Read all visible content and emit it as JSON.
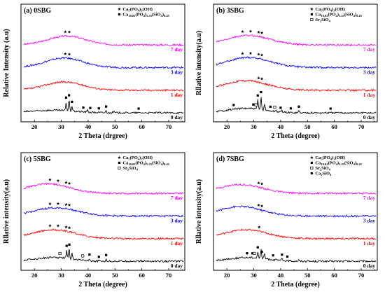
{
  "chart_data": [
    {
      "type": "line",
      "title": "(a) 0SBG",
      "ylabel": "Relative Intensity (a.u)",
      "xlabel": "2 Theta (drgree)",
      "xlim": [
        15,
        76
      ],
      "xticks": [
        20,
        30,
        40,
        50,
        60,
        70
      ],
      "legend": [
        {
          "marker": "star",
          "label": "Ca",
          "sub": "5",
          "rest": "(PO",
          "sub2": "4",
          "rest2": ")",
          "sub3": "3",
          "rest3": "(OH)"
        },
        {
          "marker": "square",
          "label": "Ca",
          "sub": "10.02",
          "rest": "(PO",
          "sub2": "4",
          "rest2": ")",
          "sub3": "5.55",
          "rest3": "(SiO",
          "sub4": "4",
          "rest4": ")",
          "sub5": "0.45"
        }
      ],
      "series": [
        {
          "name": "7 day",
          "color": "#ff00ff",
          "offset": 4,
          "amorphous": [
            32,
            1.4,
            7
          ]
        },
        {
          "name": "3 day",
          "color": "#0000ff",
          "offset": 3,
          "amorphous": [
            31,
            1.5,
            7
          ]
        },
        {
          "name": "1 day",
          "color": "#ff0000",
          "offset": 2,
          "amorphous": [
            31,
            1.3,
            7
          ]
        },
        {
          "name": "0 day",
          "color": "#000000",
          "offset": 1,
          "amorphous": [
            27,
            0.4,
            8
          ],
          "peaks": [
            [
              31.8,
              1.4
            ],
            [
              32.9,
              1.8
            ],
            [
              34.0,
              0.8
            ],
            [
              39.8,
              0.3
            ],
            [
              46.7,
              0.3
            ],
            [
              49.5,
              0.25
            ]
          ]
        }
      ],
      "markers": [
        {
          "type": "star",
          "x": 31.5,
          "series": 0
        },
        {
          "type": "star",
          "x": 33.0,
          "series": 0
        },
        {
          "type": "star",
          "x": 31.5,
          "series": 1
        },
        {
          "type": "star",
          "x": 33.0,
          "series": 1
        },
        {
          "type": "square",
          "x": 31.8,
          "series": 3
        },
        {
          "type": "square",
          "x": 32.9,
          "series": 3
        },
        {
          "type": "square",
          "x": 34.0,
          "series": 3
        },
        {
          "type": "square",
          "x": 38.2,
          "series": 3
        },
        {
          "type": "square",
          "x": 40.8,
          "series": 3
        },
        {
          "type": "square",
          "x": 44.0,
          "series": 3
        },
        {
          "type": "square",
          "x": 46.7,
          "series": 3
        },
        {
          "type": "square",
          "x": 58.8,
          "series": 3
        }
      ]
    },
    {
      "type": "line",
      "title": "(b) 3SBG",
      "ylabel": "Rllative intensity(a.u)",
      "xlabel": "2 Theta (degree)",
      "xlim": [
        15,
        76
      ],
      "xticks": [
        20,
        30,
        40,
        50,
        60,
        70
      ],
      "legend": [
        {
          "marker": "star",
          "label": "Ca",
          "sub": "5",
          "rest": "(PO",
          "sub2": "4",
          "rest2": ")",
          "sub3": "3",
          "rest3": "(OH)"
        },
        {
          "marker": "square",
          "label": "Ca",
          "sub": "10.02",
          "rest": "(PO",
          "sub2": "4",
          "rest2": ")",
          "sub3": "5.55",
          "rest3": "(SiO",
          "sub4": "4",
          "rest4": ")",
          "sub5": "0.45"
        },
        {
          "marker": "open-square",
          "label": "Sr",
          "sub": "2",
          "rest": "SiO",
          "sub2": "4"
        }
      ],
      "series": [
        {
          "name": "7 day",
          "color": "#ff00ff",
          "offset": 4,
          "amorphous": [
            28,
            1.5,
            8
          ]
        },
        {
          "name": "3 day",
          "color": "#0000ff",
          "offset": 3,
          "amorphous": [
            28,
            1.6,
            8
          ]
        },
        {
          "name": "1 day",
          "color": "#ff0000",
          "offset": 2,
          "amorphous": [
            27,
            1.5,
            8
          ]
        },
        {
          "name": "0 day",
          "color": "#000000",
          "offset": 1,
          "amorphous": [
            27,
            0.7,
            7
          ],
          "peaks": [
            [
              31.5,
              1.5
            ],
            [
              32.7,
              2.1
            ],
            [
              34.0,
              1.0
            ],
            [
              38.3,
              0.25
            ],
            [
              40.5,
              0.3
            ],
            [
              46.8,
              0.3
            ]
          ]
        }
      ],
      "markers": [
        {
          "type": "star",
          "x": 25.8,
          "series": 0
        },
        {
          "type": "star",
          "x": 28.8,
          "series": 0
        },
        {
          "type": "star",
          "x": 31.8,
          "series": 0
        },
        {
          "type": "star",
          "x": 33.0,
          "series": 0
        },
        {
          "type": "star",
          "x": 25.8,
          "series": 1
        },
        {
          "type": "star",
          "x": 28.8,
          "series": 1
        },
        {
          "type": "star",
          "x": 31.8,
          "series": 1
        },
        {
          "type": "star",
          "x": 33.0,
          "series": 1
        },
        {
          "type": "star",
          "x": 31.8,
          "series": 2
        },
        {
          "type": "star",
          "x": 33.0,
          "series": 2
        },
        {
          "type": "square",
          "x": 22.5,
          "series": 3
        },
        {
          "type": "square",
          "x": 29.8,
          "series": 3
        },
        {
          "type": "open-square",
          "x": 30.8,
          "series": 3
        },
        {
          "type": "square",
          "x": 31.5,
          "series": 3
        },
        {
          "type": "square",
          "x": 32.7,
          "series": 3
        },
        {
          "type": "open-square",
          "x": 37.8,
          "series": 3
        },
        {
          "type": "square",
          "x": 36.2,
          "series": 3
        },
        {
          "type": "square",
          "x": 40.0,
          "series": 3
        },
        {
          "type": "square",
          "x": 43.8,
          "series": 3
        },
        {
          "type": "square",
          "x": 46.8,
          "series": 3
        },
        {
          "type": "square",
          "x": 58.6,
          "series": 3
        }
      ]
    },
    {
      "type": "line",
      "title": "(c) 5SBG",
      "ylabel": "Rllative intensity(a.u)",
      "xlabel": "2 Theta (degree)",
      "xlim": [
        15,
        76
      ],
      "xticks": [
        20,
        30,
        40,
        50,
        60,
        70
      ],
      "legend": [
        {
          "marker": "star",
          "label": "Ca",
          "sub": "5",
          "rest": "(PO",
          "sub2": "4",
          "rest2": ")",
          "sub3": "3",
          "rest3": "(OH)"
        },
        {
          "marker": "square",
          "label": "Ca",
          "sub": "10.02",
          "rest": "(PO",
          "sub2": "4",
          "rest2": ")",
          "sub3": "5.55",
          "rest3": "(SiO",
          "sub4": "4",
          "rest4": ")",
          "sub5": "0.45"
        },
        {
          "marker": "open-square",
          "label": "Sr",
          "sub": "2",
          "rest": "SiO",
          "sub2": "4"
        }
      ],
      "series": [
        {
          "name": "7 day",
          "color": "#ff00ff",
          "offset": 4,
          "amorphous": [
            25,
            1.5,
            8
          ]
        },
        {
          "name": "3 day",
          "color": "#0000ff",
          "offset": 3,
          "amorphous": [
            28,
            1.3,
            8
          ]
        },
        {
          "name": "1 day",
          "color": "#ff0000",
          "offset": 2,
          "amorphous": [
            27,
            1.4,
            8
          ]
        },
        {
          "name": "0 day",
          "color": "#000000",
          "offset": 1,
          "amorphous": [
            27,
            0.6,
            7
          ],
          "peaks": [
            [
              32.0,
              1.3
            ],
            [
              32.9,
              1.8
            ],
            [
              34.0,
              0.9
            ],
            [
              40.5,
              0.3
            ],
            [
              46.7,
              0.3
            ]
          ]
        }
      ],
      "markers": [
        {
          "type": "star",
          "x": 25.8,
          "series": 0
        },
        {
          "type": "star",
          "x": 28.8,
          "series": 0
        },
        {
          "type": "star",
          "x": 31.8,
          "series": 0
        },
        {
          "type": "star",
          "x": 33.0,
          "series": 0
        },
        {
          "type": "star",
          "x": 25.8,
          "series": 1
        },
        {
          "type": "star",
          "x": 28.8,
          "series": 1
        },
        {
          "type": "star",
          "x": 31.8,
          "series": 1
        },
        {
          "type": "star",
          "x": 33.0,
          "series": 1
        },
        {
          "type": "star",
          "x": 25.8,
          "series": 2
        },
        {
          "type": "star",
          "x": 28.8,
          "series": 2
        },
        {
          "type": "star",
          "x": 31.8,
          "series": 2
        },
        {
          "type": "star",
          "x": 33.0,
          "series": 2
        },
        {
          "type": "open-square",
          "x": 29.5,
          "series": 3
        },
        {
          "type": "square",
          "x": 32.0,
          "series": 3
        },
        {
          "type": "square",
          "x": 33.0,
          "series": 3
        },
        {
          "type": "open-square",
          "x": 38.0,
          "series": 3
        },
        {
          "type": "square",
          "x": 40.5,
          "series": 3
        },
        {
          "type": "square",
          "x": 44.0,
          "series": 3
        },
        {
          "type": "square",
          "x": 46.7,
          "series": 3
        }
      ]
    },
    {
      "type": "line",
      "title": "(d) 7SBG",
      "ylabel": "Rllative intensity(a.u)",
      "xlabel": "2 Theta (degree)",
      "xlim": [
        15,
        76
      ],
      "xticks": [
        20,
        30,
        40,
        50,
        60,
        70
      ],
      "legend": [
        {
          "marker": "star",
          "label": "Ca",
          "sub": "5",
          "rest": "(PO",
          "sub2": "4",
          "rest2": ")",
          "sub3": "3",
          "rest3": "(OH)"
        },
        {
          "marker": "square",
          "label": "Ca",
          "sub": "10.02",
          "rest": "(PO",
          "sub2": "4",
          "rest2": ")",
          "sub3": "5.55",
          "rest3": "(SiO",
          "sub4": "4",
          "rest4": ")",
          "sub5": "0.45"
        },
        {
          "marker": "open-square",
          "label": "Sr",
          "sub": "2",
          "rest": "SiO",
          "sub2": "4"
        },
        {
          "marker": "dot",
          "label": "Ca",
          "sub": "2",
          "rest": "SiO",
          "sub2": "4"
        }
      ],
      "series": [
        {
          "name": "7 day",
          "color": "#ff00ff",
          "offset": 4,
          "amorphous": [
            25,
            1.4,
            8
          ]
        },
        {
          "name": "3 day",
          "color": "#0000ff",
          "offset": 3,
          "amorphous": [
            25,
            1.5,
            8
          ]
        },
        {
          "name": "1 day",
          "color": "#ff0000",
          "offset": 2,
          "amorphous": [
            27,
            1.4,
            8
          ]
        },
        {
          "name": "0 day",
          "color": "#000000",
          "offset": 1,
          "amorphous": [
            28,
            0.6,
            7
          ],
          "peaks": [
            [
              31.5,
              1.0
            ],
            [
              32.7,
              1.4
            ],
            [
              34.0,
              0.8
            ],
            [
              40.5,
              0.25
            ],
            [
              46.7,
              0.2
            ]
          ]
        }
      ],
      "markers": [
        {
          "type": "star",
          "x": 31.8,
          "series": 0
        },
        {
          "type": "star",
          "x": 33.0,
          "series": 0
        },
        {
          "type": "star",
          "x": 31.8,
          "series": 1
        },
        {
          "type": "star",
          "x": 33.0,
          "series": 1
        },
        {
          "type": "star",
          "x": 32.0,
          "series": 2
        },
        {
          "type": "dot",
          "x": 27.5,
          "series": 3
        },
        {
          "type": "square",
          "x": 29.5,
          "series": 3
        },
        {
          "type": "open-square",
          "x": 30.2,
          "series": 3
        },
        {
          "type": "dot",
          "x": 31.5,
          "series": 3
        },
        {
          "type": "dot",
          "x": 33.0,
          "series": 3
        },
        {
          "type": "square",
          "x": 37.2,
          "series": 3
        },
        {
          "type": "square",
          "x": 40.5,
          "series": 3
        },
        {
          "type": "square",
          "x": 42.5,
          "series": 3
        }
      ]
    }
  ]
}
